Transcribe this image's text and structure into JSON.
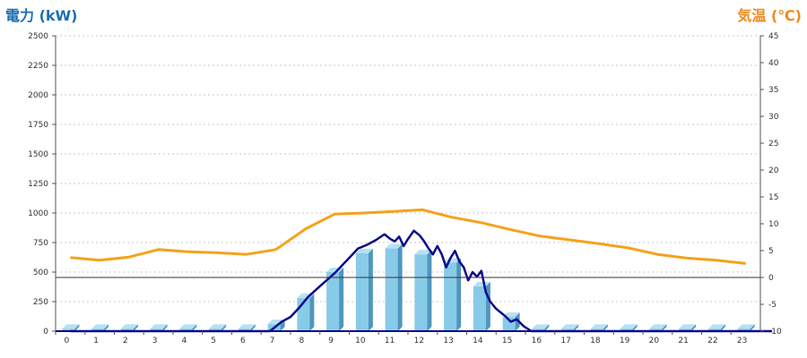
{
  "chart_data": {
    "type": "bar+line",
    "title": "",
    "y_left": {
      "label": "電力 (kW)",
      "min": 0,
      "max": 2500,
      "ticks": [
        0,
        250,
        500,
        750,
        1000,
        1250,
        1500,
        1750,
        2000,
        2250,
        2500
      ]
    },
    "y_right": {
      "label": "気温 (℃)",
      "min": -10,
      "max": 45,
      "ticks": [
        -10,
        -5,
        0,
        5,
        10,
        15,
        20,
        25,
        30,
        35,
        40,
        45
      ]
    },
    "categories": [
      "0",
      "1",
      "2",
      "3",
      "4",
      "5",
      "6",
      "7",
      "8",
      "9",
      "10",
      "11",
      "12",
      "13",
      "14",
      "15",
      "16",
      "17",
      "18",
      "19",
      "20",
      "21",
      "22",
      "23"
    ],
    "reference_line": {
      "axis": "right",
      "value": 0
    },
    "grid": true,
    "series": [
      {
        "type": "bar",
        "axis": "left",
        "color": "#88c8e6",
        "values": [
          20,
          20,
          20,
          20,
          20,
          20,
          20,
          60,
          280,
          500,
          660,
          700,
          650,
          580,
          380,
          120,
          20,
          20,
          20,
          20,
          20,
          20,
          20,
          20
        ]
      },
      {
        "type": "line",
        "axis": "left",
        "color": "#0a0a8c",
        "x": [
          0,
          6.8,
          7.2,
          7.5,
          7.8,
          8.1,
          8.5,
          9,
          9.5,
          9.8,
          10.1,
          10.4,
          10.7,
          10.9,
          11.05,
          11.2,
          11.35,
          11.5,
          11.7,
          11.9,
          12.05,
          12.2,
          12.35,
          12.5,
          12.65,
          12.8,
          12.95,
          13.1,
          13.25,
          13.4,
          13.55,
          13.7,
          13.85,
          14.0,
          14.15,
          14.3,
          14.5,
          14.8,
          15.0,
          15.2,
          15.45,
          15.7,
          23.9
        ],
        "values": [
          0,
          0,
          80,
          120,
          200,
          290,
          380,
          490,
          620,
          700,
          730,
          770,
          820,
          780,
          760,
          800,
          720,
          780,
          850,
          810,
          760,
          700,
          650,
          720,
          650,
          540,
          620,
          680,
          590,
          540,
          430,
          500,
          460,
          510,
          330,
          250,
          190,
          130,
          80,
          100,
          40,
          0,
          0
        ]
      },
      {
        "type": "line",
        "axis": "right",
        "color": "#f5a21b",
        "values": [
          3.7,
          3.2,
          3.8,
          5.2,
          4.8,
          4.6,
          4.3,
          5.2,
          9.0,
          11.8,
          12.0,
          12.3,
          12.6,
          11.2,
          10.2,
          8.9,
          7.7,
          7.0,
          6.3,
          5.5,
          4.3,
          3.6,
          3.2,
          2.6
        ]
      }
    ]
  }
}
